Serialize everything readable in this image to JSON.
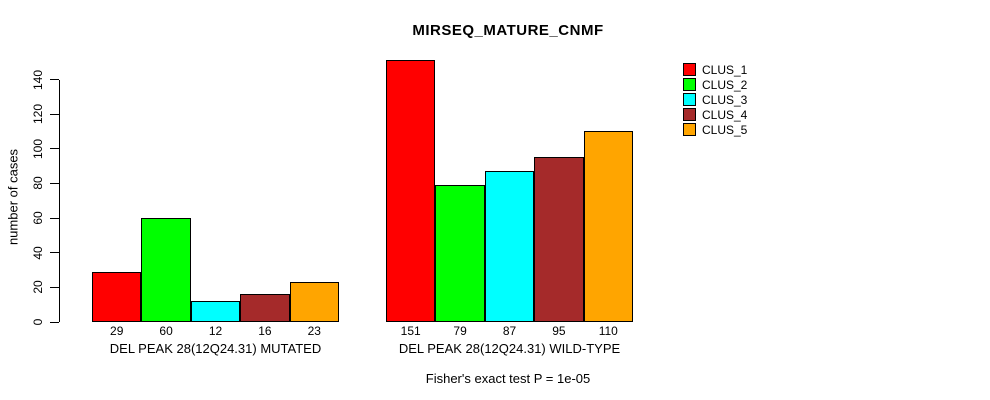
{
  "chart_data": {
    "type": "bar",
    "title": "MIRSEQ_MATURE_CNMF",
    "ylabel": "number of cases",
    "ylim": [
      0,
      140
    ],
    "yticks": [
      0,
      20,
      40,
      60,
      80,
      100,
      120,
      140
    ],
    "grid": false,
    "groups": [
      {
        "label": "DEL PEAK 28(12Q24.31) MUTATED",
        "values": [
          29,
          60,
          12,
          16,
          23
        ]
      },
      {
        "label": "DEL PEAK 28(12Q24.31) WILD-TYPE",
        "values": [
          151,
          79,
          87,
          95,
          110
        ]
      }
    ],
    "series_colors": [
      "#FF0000",
      "#00FF00",
      "#00FFFF",
      "#A52A2A",
      "#FFA500"
    ],
    "legend": {
      "position": "top-right",
      "entries": [
        {
          "label": "CLUS_1",
          "color": "#FF0000"
        },
        {
          "label": "CLUS_2",
          "color": "#00FF00"
        },
        {
          "label": "CLUS_3",
          "color": "#00FFFF"
        },
        {
          "label": "CLUS_4",
          "color": "#A52A2A"
        },
        {
          "label": "CLUS_5",
          "color": "#FFA500"
        }
      ]
    },
    "annotation": "Fisher's exact test P = 1e-05"
  }
}
